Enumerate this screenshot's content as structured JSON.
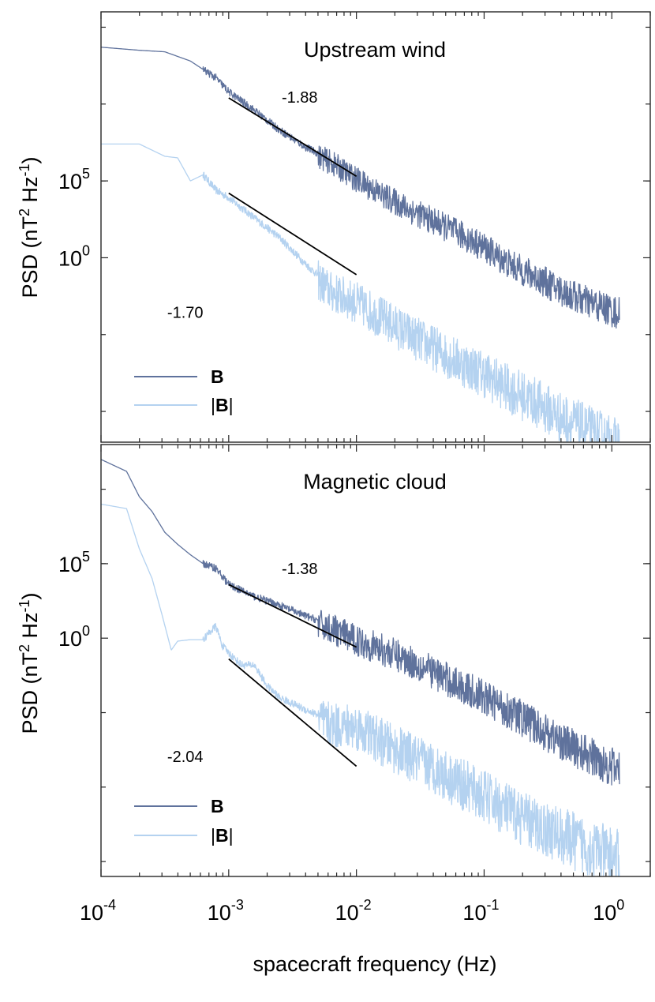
{
  "figure": {
    "xlabel": "spacecraft frequency (Hz)"
  },
  "chart_data": [
    {
      "type": "line",
      "title": "Upstream wind",
      "x_scale": "log",
      "y_scale": "log",
      "xlim": [
        0.0001,
        2.0
      ],
      "ylim_log10": [
        -12,
        16
      ],
      "ylabel": "PSD (nT² Hz⁻¹)",
      "ylabel_parts": {
        "base": "PSD (nT",
        "sup1": "2",
        "mid": " Hz",
        "sup2": "-1",
        "end": ")"
      },
      "x_ticks": [
        {
          "value": 0.0001,
          "base": "10",
          "exp": "-4"
        },
        {
          "value": 0.001,
          "base": "10",
          "exp": "-3"
        },
        {
          "value": 0.01,
          "base": "10",
          "exp": "-2"
        },
        {
          "value": 0.1,
          "base": "10",
          "exp": "-1"
        },
        {
          "value": 1,
          "base": "10",
          "exp": "0"
        }
      ],
      "y_ticks": [
        {
          "value_log10": 5,
          "base": "10",
          "exp": "5"
        },
        {
          "value_log10": 0,
          "base": "10",
          "exp": "0"
        }
      ],
      "y_minor_ticks_log10": [
        -10,
        -5,
        5,
        10,
        15
      ],
      "series": [
        {
          "name": "B",
          "label_style": "bold",
          "color": "#5f729c",
          "noise_start_log10x": -2.3,
          "noise_amp": 0.8,
          "points": [
            [
              -4,
              13.7
            ],
            [
              -3.7,
              13.5
            ],
            [
              -3.5,
              13.4
            ],
            [
              -3.3,
              12.8
            ],
            [
              -3.1,
              11.7
            ],
            [
              -3,
              10.8
            ],
            [
              -2.8,
              9.6
            ],
            [
              -2.6,
              8.3
            ],
            [
              -2.4,
              7.2
            ],
            [
              -2.2,
              6.4
            ],
            [
              -2,
              5.3
            ],
            [
              -1.8,
              4.3
            ],
            [
              -1.6,
              3.4
            ],
            [
              -1.4,
              2.6
            ],
            [
              -1.2,
              1.8
            ],
            [
              -1,
              0.9
            ],
            [
              -0.8,
              -0.2
            ],
            [
              -0.6,
              -1.0
            ],
            [
              -0.4,
              -1.9
            ],
            [
              -0.2,
              -2.6
            ],
            [
              0,
              -3.2
            ],
            [
              0.06,
              -3.4
            ]
          ]
        },
        {
          "name": "|B|",
          "label_style": "abs-bold",
          "color": "#b4d2f0",
          "noise_start_log10x": -2.3,
          "noise_amp": 1.3,
          "points": [
            [
              -4,
              7.4
            ],
            [
              -3.7,
              7.4
            ],
            [
              -3.5,
              6.6
            ],
            [
              -3.4,
              6.5
            ],
            [
              -3.3,
              5.0
            ],
            [
              -3.2,
              5.4
            ],
            [
              -3.1,
              4.4
            ],
            [
              -3,
              3.9
            ],
            [
              -2.8,
              2.6
            ],
            [
              -2.6,
              1.3
            ],
            [
              -2.4,
              -0.4
            ],
            [
              -2.2,
              -1.9
            ],
            [
              -2,
              -2.6
            ],
            [
              -1.8,
              -3.6
            ],
            [
              -1.6,
              -4.6
            ],
            [
              -1.4,
              -5.5
            ],
            [
              -1.2,
              -6.4
            ],
            [
              -1,
              -7.2
            ],
            [
              -0.8,
              -8.2
            ],
            [
              -0.6,
              -9.0
            ],
            [
              -0.4,
              -10.0
            ],
            [
              -0.2,
              -10.8
            ],
            [
              0,
              -11.6
            ],
            [
              0.06,
              -11.8
            ]
          ]
        }
      ],
      "fit_lines": [
        {
          "slope_label": "-1.88",
          "x1": 0.001,
          "y1_log10": 10.4,
          "x2": 0.01,
          "y2_log10": 5.3,
          "label_x": 0.0026,
          "label_y_log10": 10.1
        },
        {
          "slope_label": "-1.70",
          "x1": 0.001,
          "y1_log10": 4.2,
          "x2": 0.01,
          "y2_log10": -1.1,
          "label_x": 0.00033,
          "label_y_log10": -3.9
        }
      ],
      "legend": {
        "position": "bottom-left",
        "entries": [
          "B",
          "|B|"
        ]
      }
    },
    {
      "type": "line",
      "title": "Magnetic cloud",
      "x_scale": "log",
      "y_scale": "log",
      "xlim": [
        0.0001,
        2.0
      ],
      "ylim_log10": [
        -16,
        13
      ],
      "ylabel": "PSD (nT² Hz⁻¹)",
      "ylabel_parts": {
        "base": "PSD (nT",
        "sup1": "2",
        "mid": " Hz",
        "sup2": "-1",
        "end": ")"
      },
      "x_ticks": [
        {
          "value": 0.0001,
          "base": "10",
          "exp": "-4"
        },
        {
          "value": 0.001,
          "base": "10",
          "exp": "-3"
        },
        {
          "value": 0.01,
          "base": "10",
          "exp": "-2"
        },
        {
          "value": 0.1,
          "base": "10",
          "exp": "-1"
        },
        {
          "value": 1,
          "base": "10",
          "exp": "0"
        }
      ],
      "y_ticks": [
        {
          "value_log10": 5,
          "base": "10",
          "exp": "5"
        },
        {
          "value_log10": 0,
          "base": "10",
          "exp": "0"
        }
      ],
      "y_minor_ticks_log10": [
        -15,
        -10,
        -5,
        5,
        10
      ],
      "series": [
        {
          "name": "B",
          "label_style": "bold",
          "color": "#5f729c",
          "noise_start_log10x": -2.3,
          "noise_amp": 1.0,
          "points": [
            [
              -4,
              12.0
            ],
            [
              -3.8,
              11.2
            ],
            [
              -3.7,
              9.5
            ],
            [
              -3.6,
              8.5
            ],
            [
              -3.5,
              7.1
            ],
            [
              -3.4,
              6.3
            ],
            [
              -3.3,
              5.6
            ],
            [
              -3.2,
              5.0
            ],
            [
              -3.1,
              4.7
            ],
            [
              -3,
              3.6
            ],
            [
              -2.8,
              2.8
            ],
            [
              -2.6,
              2.2
            ],
            [
              -2.4,
              1.5
            ],
            [
              -2.2,
              0.9
            ],
            [
              -2,
              0.1
            ],
            [
              -1.8,
              -0.5
            ],
            [
              -1.6,
              -1.2
            ],
            [
              -1.4,
              -2.0
            ],
            [
              -1.2,
              -2.9
            ],
            [
              -1,
              -3.7
            ],
            [
              -0.8,
              -4.6
            ],
            [
              -0.6,
              -5.6
            ],
            [
              -0.4,
              -6.6
            ],
            [
              -0.2,
              -7.5
            ],
            [
              0,
              -8.3
            ],
            [
              0.06,
              -8.6
            ]
          ]
        },
        {
          "name": "|B|",
          "label_style": "abs-bold",
          "color": "#b4d2f0",
          "noise_start_log10x": -2.3,
          "noise_amp": 1.5,
          "points": [
            [
              -4,
              9.0
            ],
            [
              -3.8,
              8.7
            ],
            [
              -3.7,
              6.0
            ],
            [
              -3.6,
              4.0
            ],
            [
              -3.52,
              1.5
            ],
            [
              -3.45,
              -0.8
            ],
            [
              -3.4,
              -0.2
            ],
            [
              -3.3,
              -0.1
            ],
            [
              -3.2,
              -0.1
            ],
            [
              -3.15,
              0.4
            ],
            [
              -3.1,
              0.8
            ],
            [
              -3.05,
              -0.5
            ],
            [
              -3,
              -1.0
            ],
            [
              -2.9,
              -1.8
            ],
            [
              -2.8,
              -1.8
            ],
            [
              -2.7,
              -3.2
            ],
            [
              -2.6,
              -4.0
            ],
            [
              -2.4,
              -4.8
            ],
            [
              -2.2,
              -5.5
            ],
            [
              -2,
              -5.6
            ],
            [
              -1.8,
              -6.6
            ],
            [
              -1.6,
              -7.5
            ],
            [
              -1.4,
              -8.3
            ],
            [
              -1.2,
              -9.3
            ],
            [
              -1,
              -10.2
            ],
            [
              -0.8,
              -11.2
            ],
            [
              -0.6,
              -12.1
            ],
            [
              -0.4,
              -12.8
            ],
            [
              -0.2,
              -13.5
            ],
            [
              0,
              -14.2
            ],
            [
              0.06,
              -14.4
            ]
          ]
        }
      ],
      "fit_lines": [
        {
          "slope_label": "-1.38",
          "x1": 0.001,
          "y1_log10": 3.6,
          "x2": 0.01,
          "y2_log10": -0.6,
          "label_x": 0.0026,
          "label_y_log10": 4.3
        },
        {
          "slope_label": "-2.04",
          "x1": 0.001,
          "y1_log10": -1.4,
          "x2": 0.01,
          "y2_log10": -8.6,
          "label_x": 0.00033,
          "label_y_log10": -8.3
        }
      ],
      "legend": {
        "position": "bottom-left",
        "entries": [
          "B",
          "|B|"
        ]
      }
    }
  ]
}
